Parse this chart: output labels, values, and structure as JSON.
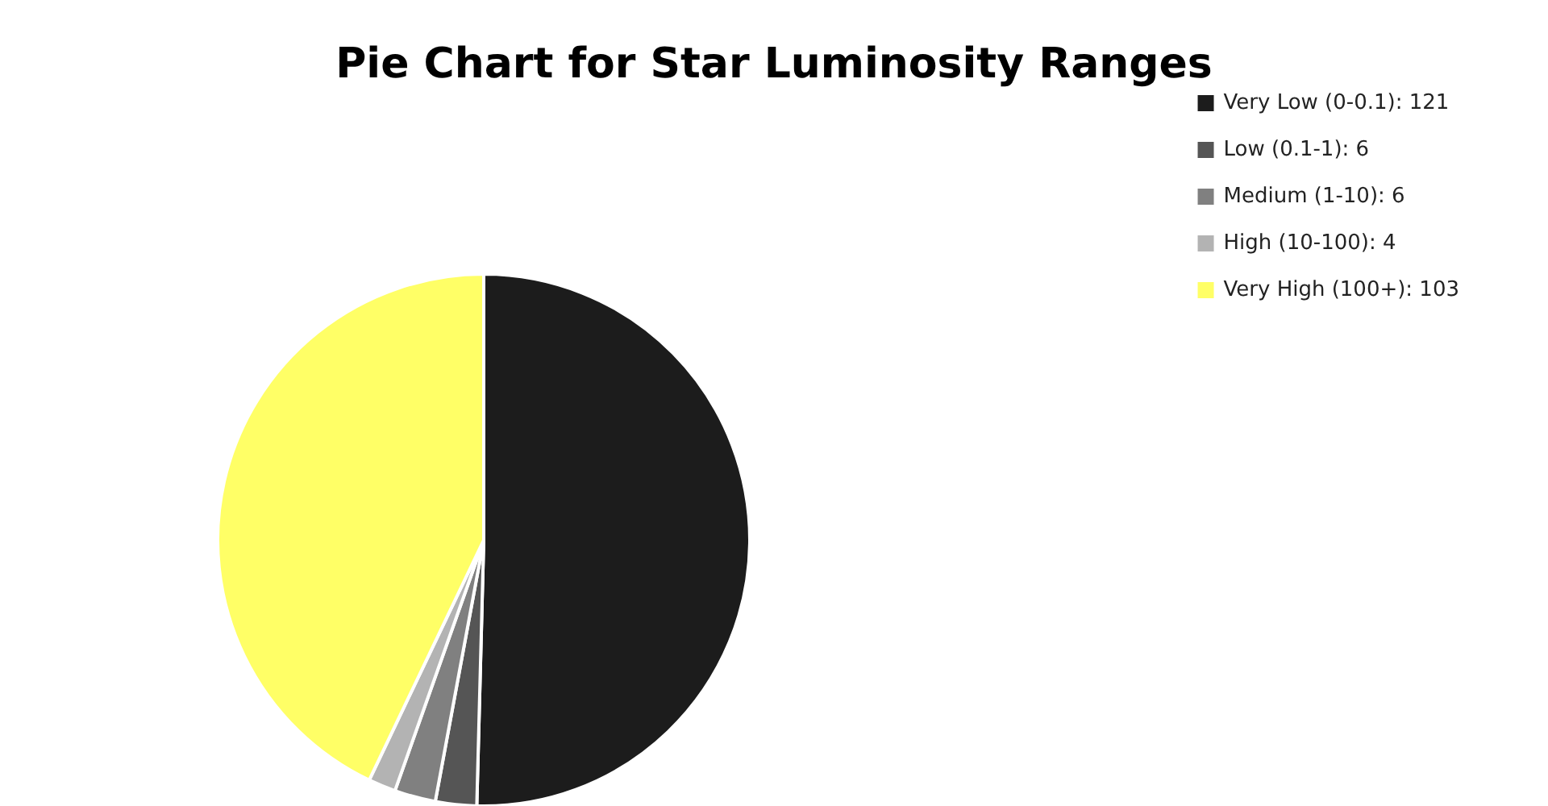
{
  "chart_data": {
    "type": "pie",
    "title": "Pie Chart for Star Luminosity Ranges",
    "categories": [
      "Very Low (0-0.1): 121",
      "Low (0.1-1): 6",
      "Medium (1-10): 6",
      "High (10-100): 4",
      "Very High (100+): 103"
    ],
    "values": [
      121,
      6,
      6,
      4,
      103
    ],
    "colors": [
      "#1c1c1c",
      "#555555",
      "#808080",
      "#b3b3b3",
      "#ffff66"
    ],
    "legend": "top right"
  }
}
